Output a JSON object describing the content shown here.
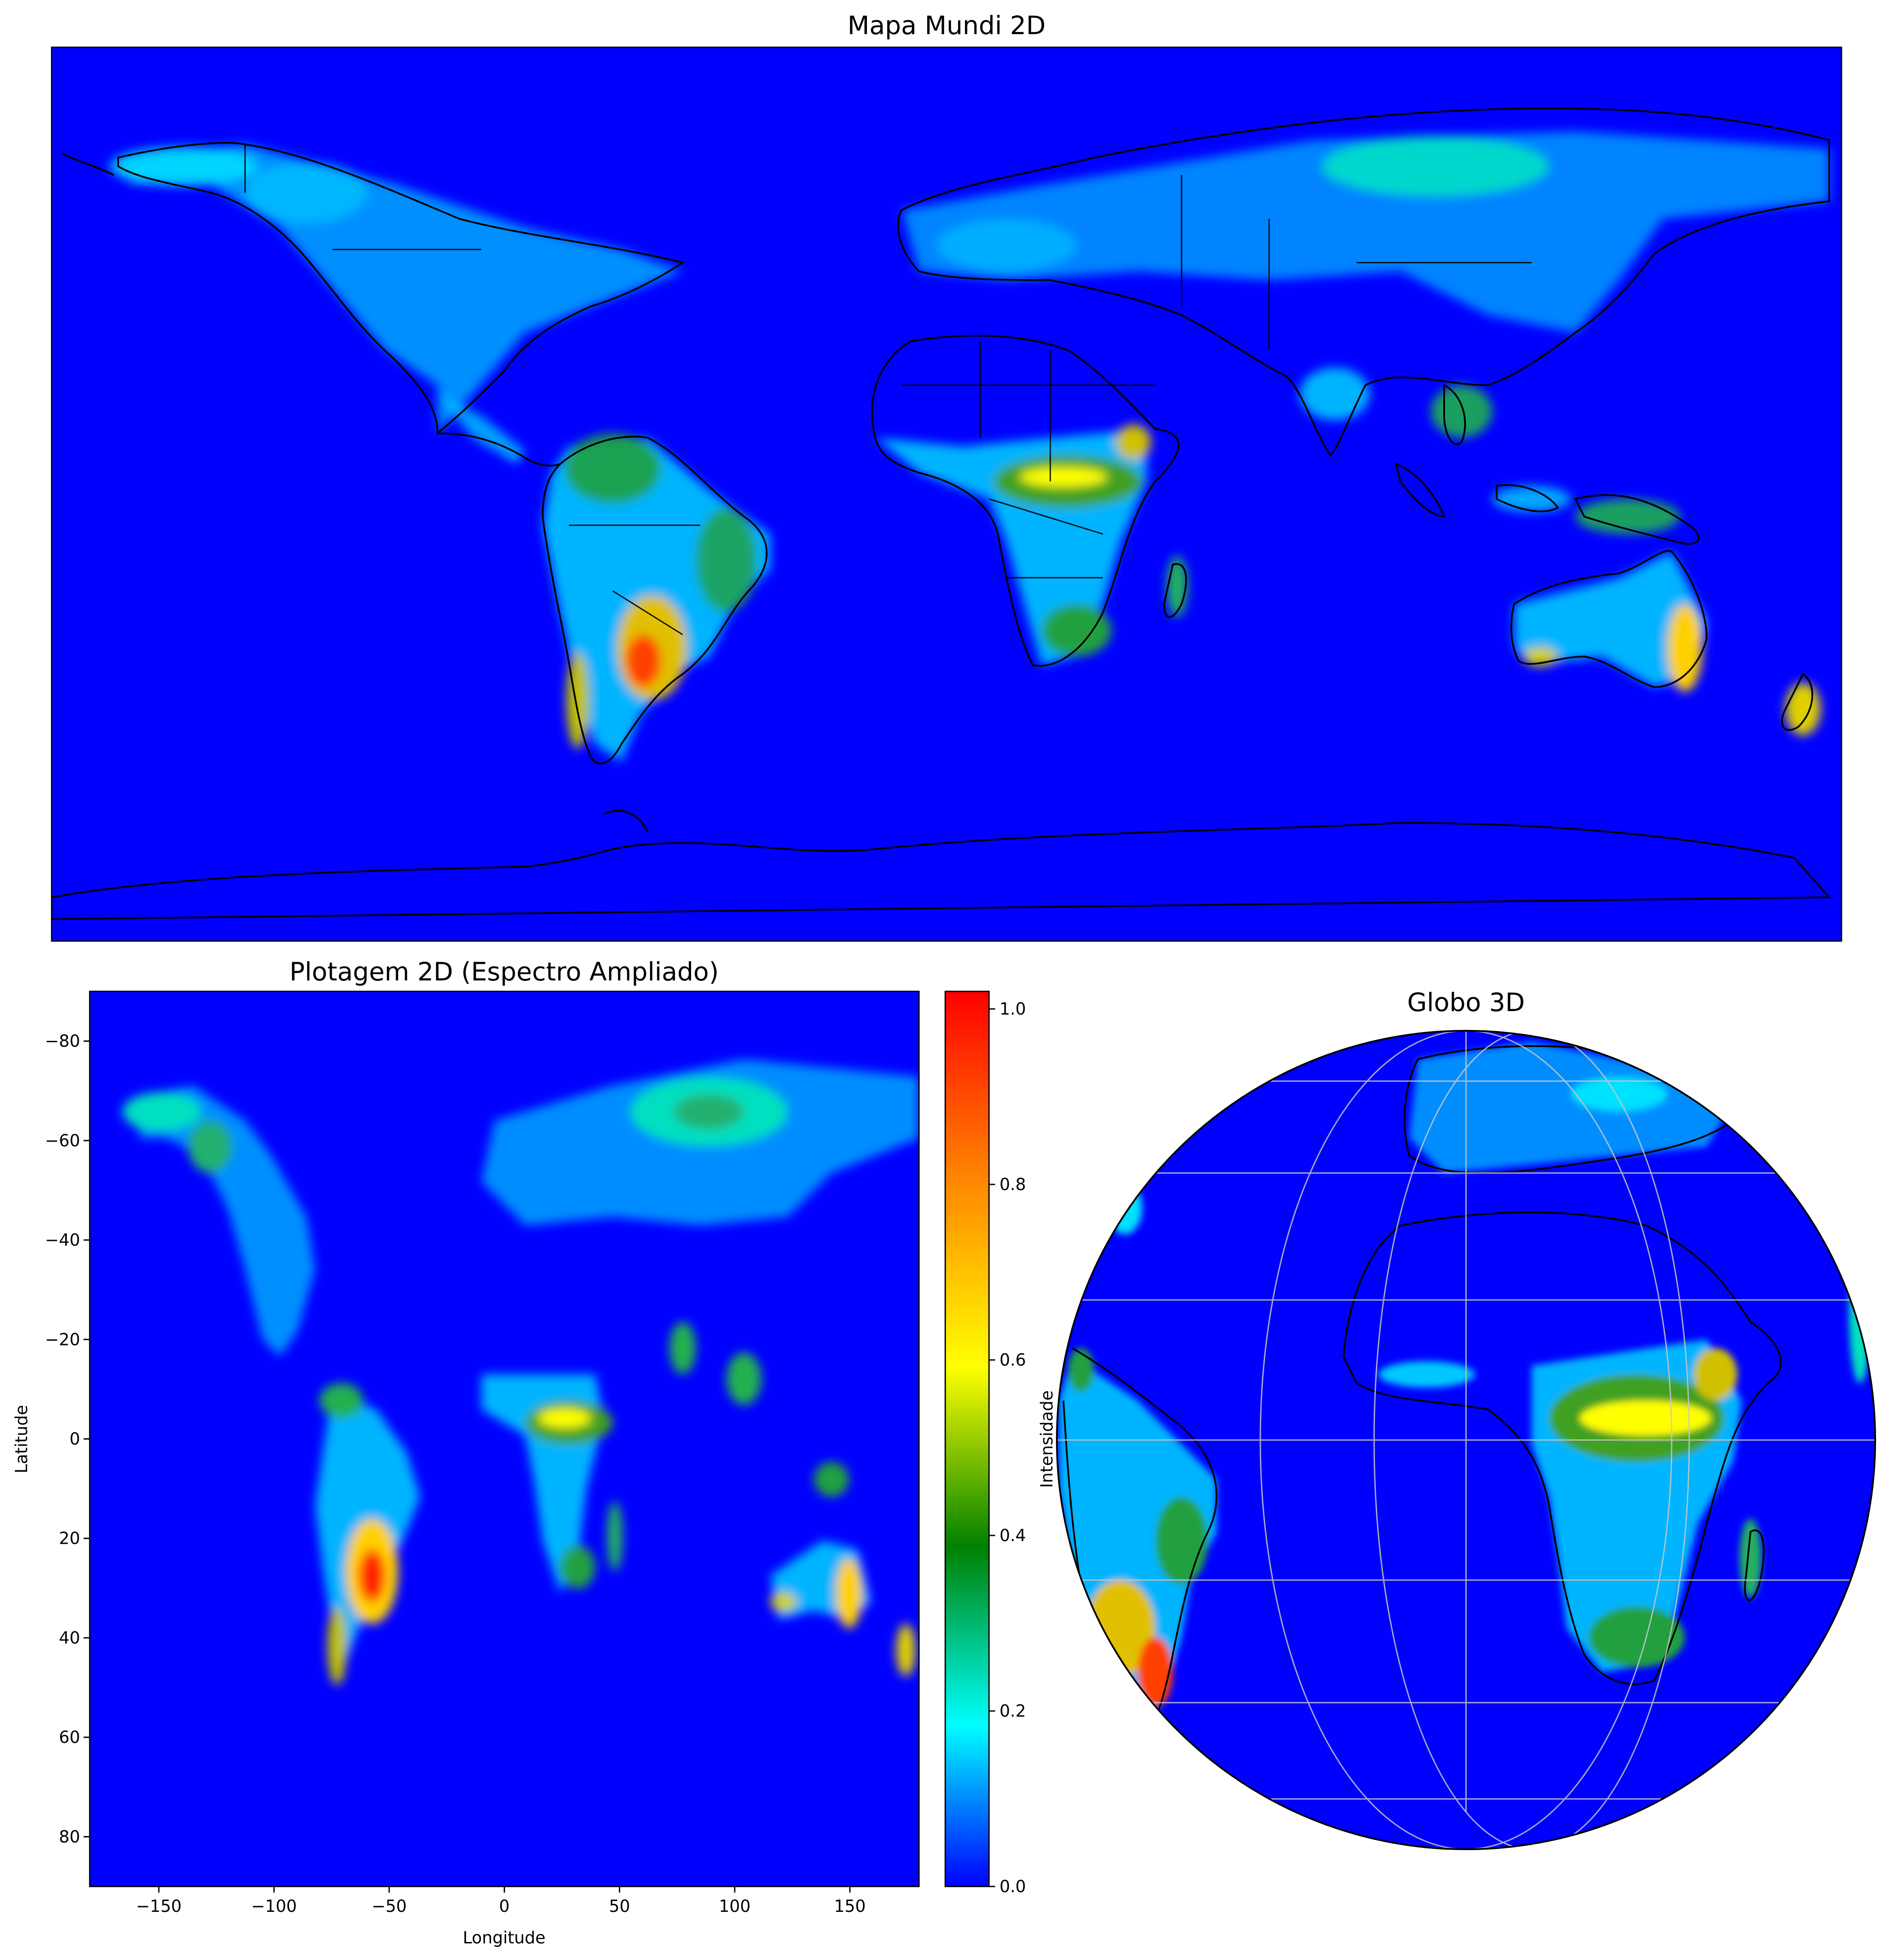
{
  "top_map": {
    "title": "Mapa Mundi 2D"
  },
  "heatmap": {
    "title": "Plotagem 2D (Espectro Ampliado)",
    "xlabel": "Longitude",
    "ylabel": "Latitude",
    "x_ticks": [
      "−150",
      "−100",
      "−50",
      "0",
      "50",
      "100",
      "150"
    ],
    "y_ticks": [
      "−80",
      "−60",
      "−40",
      "−20",
      "0",
      "20",
      "40",
      "60",
      "80"
    ],
    "xlim": [
      -180,
      180
    ],
    "ylim_top_to_bottom": [
      -90,
      90
    ]
  },
  "colorbar": {
    "label": "Intensidade",
    "ticks": [
      "0.0",
      "0.2",
      "0.4",
      "0.6",
      "0.8",
      "1.0"
    ],
    "range": [
      0,
      1.02
    ],
    "colors": [
      "#0000ff",
      "#00ffff",
      "#008000",
      "#ffff00",
      "#ff8000",
      "#ff0000"
    ]
  },
  "globe": {
    "title": "Globo 3D"
  },
  "colors": {
    "background": "#0000ff",
    "low": "#00bfff",
    "mid": "#00c000",
    "high": "#ffff00",
    "peak": "#ff2000"
  }
}
